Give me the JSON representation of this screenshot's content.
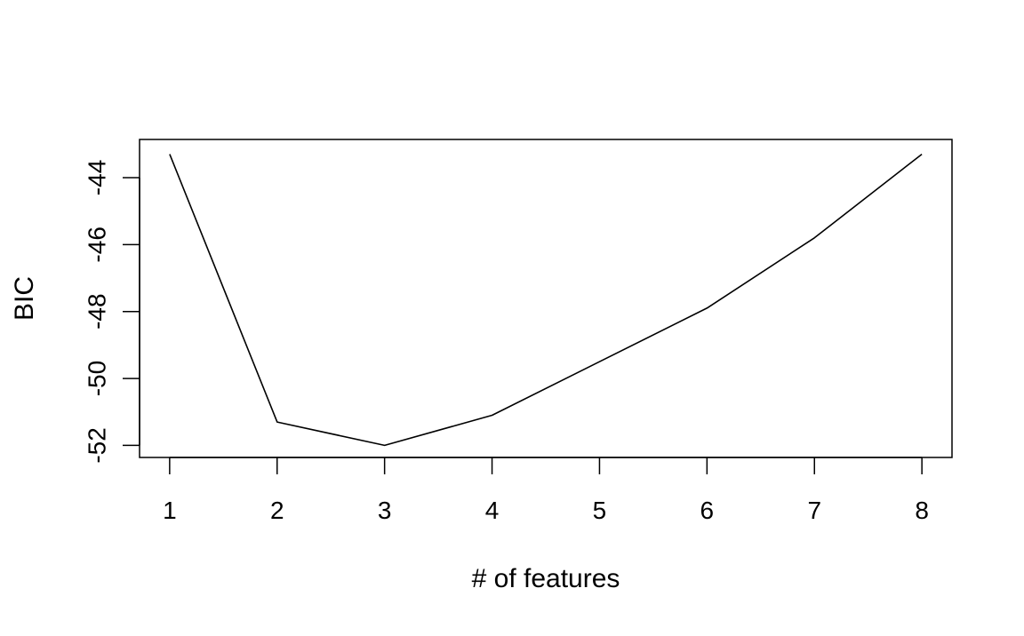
{
  "chart_data": {
    "type": "line",
    "title": "",
    "xlabel": "# of features",
    "ylabel": "BIC",
    "x": [
      1,
      2,
      3,
      4,
      5,
      6,
      7,
      8
    ],
    "series": [
      {
        "values": [
          -43.3,
          -51.3,
          -52.0,
          -51.1,
          -49.5,
          -47.9,
          -45.8,
          -43.3
        ]
      }
    ],
    "x_ticks": [
      "1",
      "2",
      "3",
      "4",
      "5",
      "6",
      "7",
      "8"
    ],
    "y_ticks": [
      "-44",
      "-46",
      "-48",
      "-50",
      "-52"
    ],
    "xlim": [
      0.72,
      8.28
    ],
    "ylim": [
      -52.36,
      -42.86
    ],
    "grid": false,
    "legend": "none",
    "line_color": "#000000"
  }
}
